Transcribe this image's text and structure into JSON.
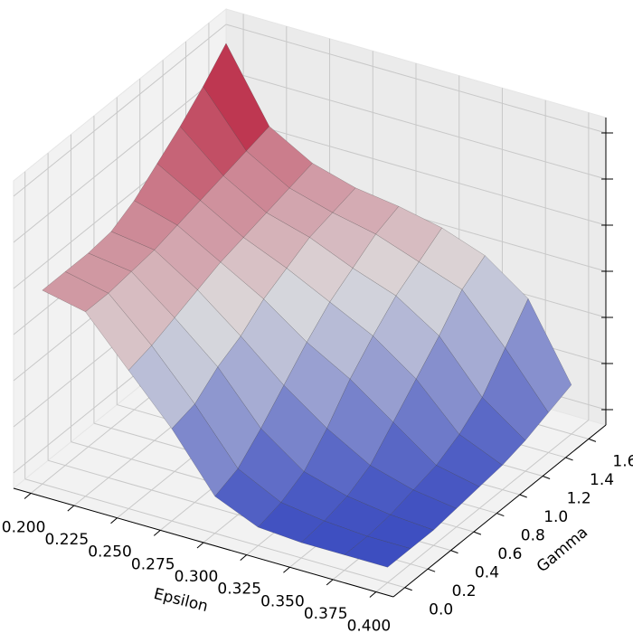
{
  "chart_data": {
    "type": "surface3d",
    "xlabel": "Epsilon",
    "ylabel": "Gamma",
    "x": [
      0.2,
      0.225,
      0.25,
      0.275,
      0.3,
      0.325,
      0.35,
      0.375,
      0.4
    ],
    "y": [
      0.0,
      0.2,
      0.4,
      0.6,
      0.8,
      1.0,
      1.2,
      1.4,
      1.6
    ],
    "z": [
      [
        0.63,
        0.6,
        0.45,
        0.3,
        0.12,
        0.06,
        0.05,
        0.05,
        0.05
      ],
      [
        0.63,
        0.6,
        0.47,
        0.32,
        0.15,
        0.08,
        0.06,
        0.05,
        0.05
      ],
      [
        0.63,
        0.61,
        0.5,
        0.38,
        0.22,
        0.12,
        0.08,
        0.06,
        0.05
      ],
      [
        0.64,
        0.62,
        0.53,
        0.42,
        0.3,
        0.2,
        0.12,
        0.08,
        0.06
      ],
      [
        0.68,
        0.64,
        0.56,
        0.48,
        0.38,
        0.3,
        0.2,
        0.1,
        0.07
      ],
      [
        0.74,
        0.66,
        0.58,
        0.52,
        0.45,
        0.38,
        0.28,
        0.14,
        0.08
      ],
      [
        0.8,
        0.68,
        0.6,
        0.56,
        0.5,
        0.45,
        0.36,
        0.2,
        0.1
      ],
      [
        0.87,
        0.7,
        0.62,
        0.58,
        0.55,
        0.5,
        0.45,
        0.3,
        0.13
      ],
      [
        0.95,
        0.72,
        0.64,
        0.6,
        0.58,
        0.55,
        0.5,
        0.4,
        0.16
      ]
    ],
    "colormap": [
      "#3b4cc0",
      "#dddddd",
      "#b40426"
    ],
    "xlim": [
      0.19,
      0.41
    ],
    "xticks": [
      {
        "value": 0.2,
        "label": "0.200"
      },
      {
        "value": 0.225,
        "label": "0.225"
      },
      {
        "value": 0.25,
        "label": "0.250"
      },
      {
        "value": 0.275,
        "label": "0.275"
      },
      {
        "value": 0.3,
        "label": "0.300"
      },
      {
        "value": 0.325,
        "label": "0.325"
      },
      {
        "value": 0.35,
        "label": "0.350"
      },
      {
        "value": 0.375,
        "label": "0.375"
      },
      {
        "value": 0.4,
        "label": "0.400"
      }
    ],
    "ylim": [
      -0.1,
      1.75
    ],
    "yticks": [
      {
        "value": 0,
        "label": "0.0"
      },
      0.2,
      0.4,
      0.6,
      0.8,
      {
        "value": 1,
        "label": "1.0"
      },
      1.2,
      1.4,
      1.6
    ],
    "zlim": [
      0,
      1
    ],
    "zticks": [
      0.05,
      0.2,
      0.35,
      0.5,
      0.65,
      0.8,
      0.95
    ],
    "grid": true
  }
}
